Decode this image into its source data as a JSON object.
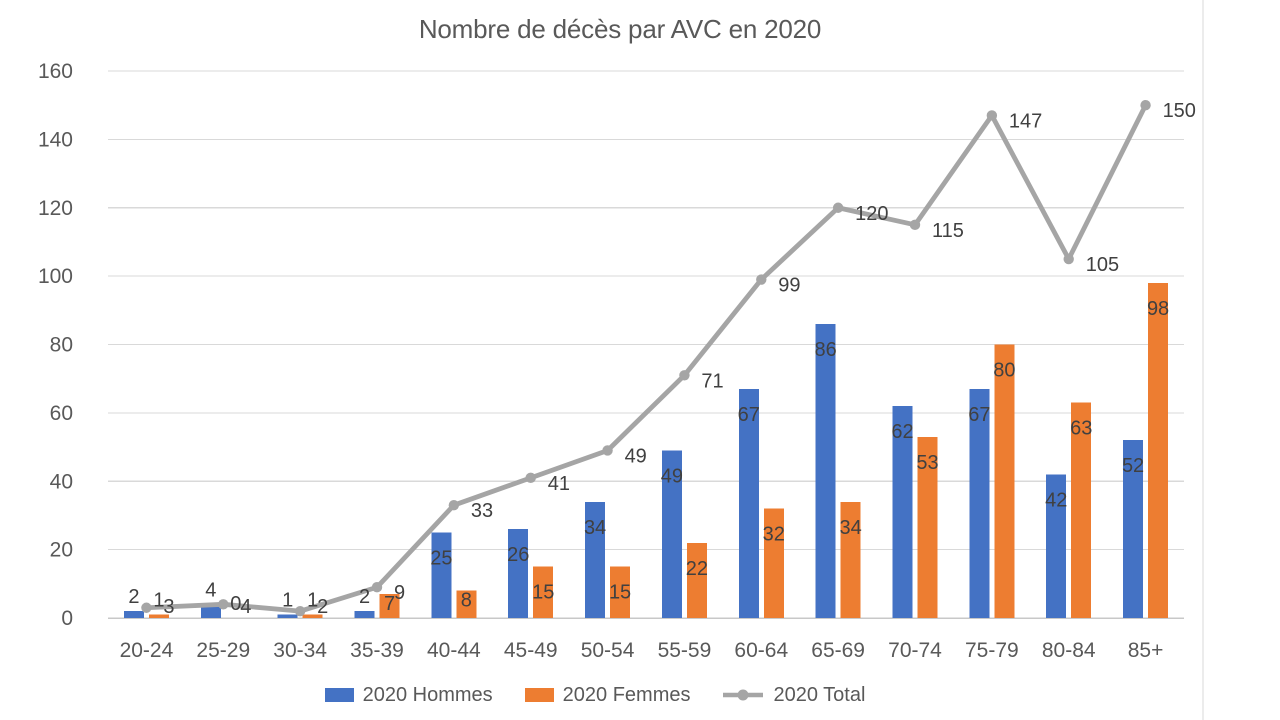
{
  "chart_data": {
    "type": "bar",
    "title": "Nombre de décès par AVC en 2020",
    "categories": [
      "20-24",
      "25-29",
      "30-34",
      "35-39",
      "40-44",
      "45-49",
      "50-54",
      "55-59",
      "60-64",
      "65-69",
      "70-74",
      "75-79",
      "80-84",
      "85+"
    ],
    "series": [
      {
        "name": "2020 Hommes",
        "chart_type": "bar",
        "color": "#4472C4",
        "values": [
          2,
          4,
          1,
          2,
          25,
          26,
          34,
          49,
          67,
          86,
          62,
          67,
          42,
          52
        ]
      },
      {
        "name": "2020 Femmes",
        "chart_type": "bar",
        "color": "#ED7D31",
        "values": [
          1,
          0,
          1,
          7,
          8,
          15,
          15,
          22,
          32,
          34,
          53,
          80,
          63,
          98
        ]
      },
      {
        "name": "2020 Total",
        "chart_type": "line",
        "color": "#A5A5A5",
        "values": [
          3,
          4,
          2,
          9,
          33,
          41,
          49,
          71,
          99,
          120,
          115,
          147,
          105,
          150
        ]
      }
    ],
    "xlabel": "",
    "ylabel": "",
    "ylim": [
      0,
      160
    ],
    "yticks": [
      0,
      20,
      40,
      60,
      80,
      100,
      120,
      140,
      160
    ],
    "grid": true,
    "legend_position": "bottom",
    "data_labels": true,
    "title_color": "#595959",
    "axis_text_color": "#595959",
    "label_text_color": "#404040",
    "gridline_color": "#D9D9D9",
    "axisline_color": "#C8C8C8"
  }
}
